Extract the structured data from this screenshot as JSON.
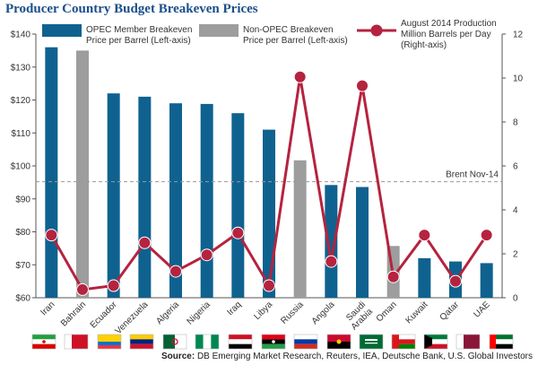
{
  "title": "Producer Country Budget Breakeven Prices",
  "source_label": "Source:",
  "source_text": "DB Emerging Market Research, Reuters, IEA, Deutsche Bank, U.S. Global Investors",
  "colors": {
    "opec": "#0f628f",
    "nonopec": "#9d9d9d",
    "line": "#b5233f",
    "brent": "#9a9a9a",
    "title": "#1b4f8a"
  },
  "chart_data": {
    "type": "bar",
    "categories": [
      "Iran",
      "Bahrain",
      "Ecuador",
      "Venezuela",
      "Algeria",
      "Nigeria",
      "Iraq",
      "Libya",
      "Russia",
      "Angola",
      "Saudi Arabia",
      "Oman",
      "Kuwait",
      "Qatar",
      "UAE"
    ],
    "group": [
      "opec",
      "nonopec",
      "opec",
      "opec",
      "opec",
      "opec",
      "opec",
      "opec",
      "nonopec",
      "opec",
      "opec",
      "nonopec",
      "opec",
      "opec",
      "opec"
    ],
    "series": [
      {
        "name": "OPEC Member Breakeven Price per Barrel (Left-axis)",
        "values": [
          136,
          null,
          122,
          121,
          119,
          118.8,
          116,
          111,
          null,
          94.2,
          93.6,
          null,
          72,
          71,
          70.5
        ]
      },
      {
        "name": "Non-OPEC Breakeven Price per Barrel (Left-axis)",
        "values": [
          null,
          135,
          null,
          null,
          null,
          null,
          null,
          null,
          101.7,
          null,
          null,
          75.7,
          null,
          null,
          null
        ]
      },
      {
        "name": "August 2014 Production Million Barrels per Day (Right-axis)",
        "axis": "right",
        "values": [
          2.85,
          0.37,
          0.55,
          2.5,
          1.2,
          1.95,
          2.95,
          0.55,
          10.05,
          1.65,
          9.65,
          0.95,
          2.85,
          0.75,
          2.85
        ]
      }
    ],
    "reference_line": {
      "label": "Brent Nov-14",
      "value": 95.2
    },
    "ylim": [
      60,
      140
    ],
    "yticks": [
      60,
      70,
      80,
      90,
      100,
      110,
      120,
      130,
      140
    ],
    "ytick_prefix": "$",
    "y2lim": [
      0,
      12
    ],
    "y2ticks": [
      0,
      2,
      4,
      6,
      8,
      10,
      12
    ],
    "legend_placement": "top",
    "grid": false
  },
  "flags_label": "country flags"
}
